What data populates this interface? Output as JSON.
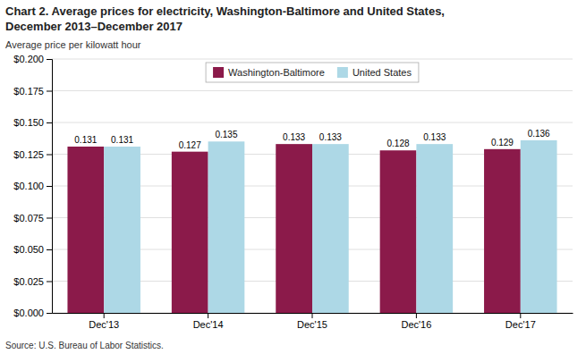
{
  "chart_data": {
    "type": "bar",
    "title": [
      "Chart 2. Average prices for electricity, Washington-Baltimore and United States,",
      "December 2013–December 2017"
    ],
    "ylabel": "Average price per kilowatt hour",
    "source": "Source: U.S. Bureau of Labor Statistics.",
    "categories": [
      "Dec'13",
      "Dec'14",
      "Dec'15",
      "Dec'16",
      "Dec'17"
    ],
    "series": [
      {
        "name": "Washington-Baltimore",
        "color": "#8B1A4A",
        "values": [
          0.131,
          0.127,
          0.133,
          0.128,
          0.129
        ]
      },
      {
        "name": "United States",
        "color": "#ADD8E6",
        "values": [
          0.131,
          0.135,
          0.133,
          0.133,
          0.136
        ]
      }
    ],
    "ylim": [
      0.0,
      0.2
    ],
    "yticks": [
      {
        "value": 0.0,
        "label": "$0.000"
      },
      {
        "value": 0.025,
        "label": "$0.025"
      },
      {
        "value": 0.05,
        "label": "$0.050"
      },
      {
        "value": 0.075,
        "label": "$0.075"
      },
      {
        "value": 0.1,
        "label": "$0.100"
      },
      {
        "value": 0.125,
        "label": "$0.125"
      },
      {
        "value": 0.15,
        "label": "$0.150"
      },
      {
        "value": 0.175,
        "label": "$0.175"
      },
      {
        "value": 0.2,
        "label": "$0.200"
      }
    ],
    "grid": true,
    "legend": "top",
    "data_labels": true
  }
}
